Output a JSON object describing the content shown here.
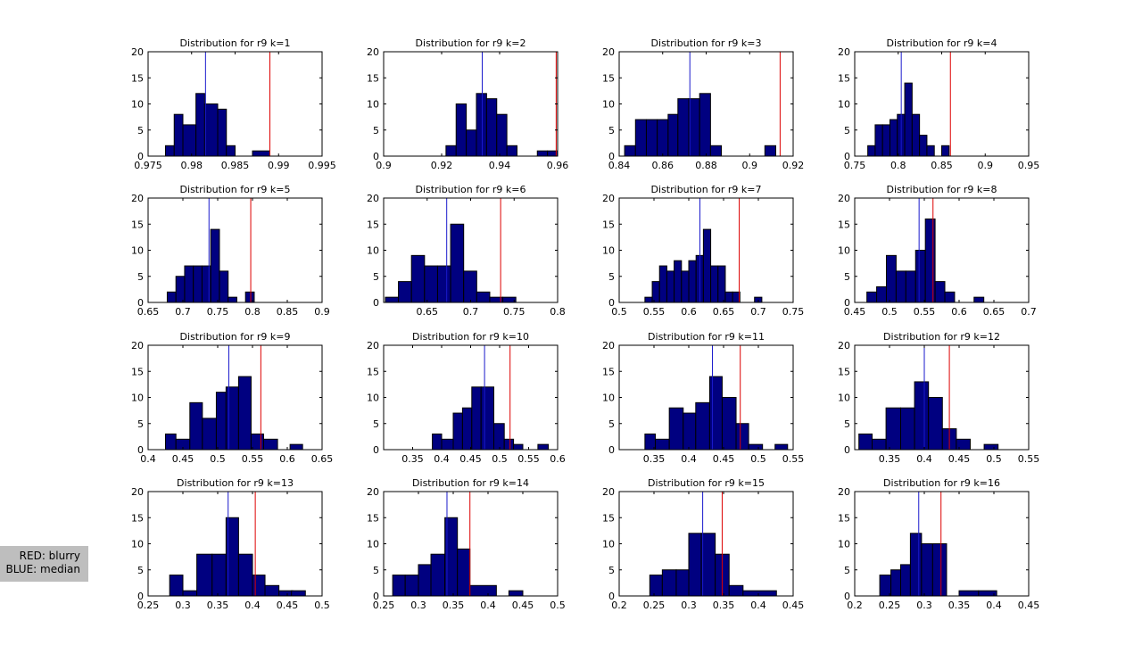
{
  "legend": {
    "red_label": "RED: blurry",
    "blue_label": "BLUE: median"
  },
  "colors": {
    "bar_fill": "#000080",
    "bar_edge": "#000000",
    "red_line": "#dd0000",
    "blue_line": "#1a1acc"
  },
  "chart_data": [
    {
      "type": "bar",
      "title": "Distribution for r9 k=1",
      "xlim": [
        0.975,
        0.995
      ],
      "ylim": [
        0,
        20
      ],
      "xticks": [
        0.975,
        0.98,
        0.985,
        0.99,
        0.995
      ],
      "xtick_labels": [
        "0.975",
        "0.98",
        "0.985",
        "0.99",
        "0.995"
      ],
      "yticks": [
        0,
        5,
        10,
        15,
        20
      ],
      "bins": [
        [
          0.977,
          0.978,
          2
        ],
        [
          0.978,
          0.979,
          8
        ],
        [
          0.979,
          0.9805,
          6
        ],
        [
          0.9805,
          0.9815,
          12
        ],
        [
          0.9815,
          0.983,
          10
        ],
        [
          0.983,
          0.984,
          9
        ],
        [
          0.984,
          0.985,
          2
        ],
        [
          0.987,
          0.989,
          1
        ]
      ],
      "median": 0.9816,
      "blurry": 0.989
    },
    {
      "type": "bar",
      "title": "Distribution for r9 k=2",
      "xlim": [
        0.9,
        0.96
      ],
      "ylim": [
        0,
        20
      ],
      "xticks": [
        0.9,
        0.92,
        0.94,
        0.96
      ],
      "xtick_labels": [
        "0.9",
        "0.92",
        "0.94",
        "0.96"
      ],
      "yticks": [
        0,
        5,
        10,
        15,
        20
      ],
      "bins": [
        [
          0.9215,
          0.925,
          2
        ],
        [
          0.925,
          0.9285,
          10
        ],
        [
          0.9285,
          0.932,
          5
        ],
        [
          0.932,
          0.9355,
          12
        ],
        [
          0.9355,
          0.939,
          11
        ],
        [
          0.939,
          0.9425,
          8
        ],
        [
          0.9425,
          0.946,
          2
        ],
        [
          0.9495,
          0.953,
          0
        ],
        [
          0.953,
          0.9565,
          1
        ],
        [
          0.9565,
          0.96,
          1
        ]
      ],
      "median": 0.934,
      "blurry": 0.9595
    },
    {
      "type": "bar",
      "title": "Distribution for r9 k=3",
      "xlim": [
        0.84,
        0.92
      ],
      "ylim": [
        0,
        20
      ],
      "xticks": [
        0.84,
        0.86,
        0.88,
        0.9,
        0.92
      ],
      "xtick_labels": [
        "0.84",
        "0.86",
        "0.88",
        "0.9",
        "0.92"
      ],
      "yticks": [
        0,
        5,
        10,
        15,
        20
      ],
      "bins": [
        [
          0.8425,
          0.8475,
          2
        ],
        [
          0.8475,
          0.8525,
          7
        ],
        [
          0.8525,
          0.8575,
          7
        ],
        [
          0.8575,
          0.8625,
          7
        ],
        [
          0.8625,
          0.867,
          8
        ],
        [
          0.867,
          0.872,
          11
        ],
        [
          0.872,
          0.877,
          11
        ],
        [
          0.877,
          0.882,
          12
        ],
        [
          0.882,
          0.887,
          2
        ],
        [
          0.907,
          0.912,
          2
        ]
      ],
      "median": 0.8725,
      "blurry": 0.914
    },
    {
      "type": "bar",
      "title": "Distribution for r9 k=4",
      "xlim": [
        0.75,
        0.95
      ],
      "ylim": [
        0,
        20
      ],
      "xticks": [
        0.75,
        0.8,
        0.85,
        0.9,
        0.95
      ],
      "xtick_labels": [
        "0.75",
        "0.8",
        "0.85",
        "0.9",
        "0.95"
      ],
      "yticks": [
        0,
        5,
        10,
        15,
        20
      ],
      "bins": [
        [
          0.765,
          0.7735,
          2
        ],
        [
          0.7735,
          0.782,
          6
        ],
        [
          0.782,
          0.7905,
          6
        ],
        [
          0.7905,
          0.799,
          7
        ],
        [
          0.799,
          0.8075,
          8
        ],
        [
          0.8075,
          0.816,
          14
        ],
        [
          0.816,
          0.8245,
          8
        ],
        [
          0.8245,
          0.833,
          4
        ],
        [
          0.833,
          0.8415,
          2
        ],
        [
          0.85,
          0.8585,
          2
        ]
      ],
      "median": 0.8035,
      "blurry": 0.86
    },
    {
      "type": "bar",
      "title": "Distribution for r9 k=5",
      "xlim": [
        0.65,
        0.9
      ],
      "ylim": [
        0,
        20
      ],
      "xticks": [
        0.65,
        0.7,
        0.75,
        0.8,
        0.85,
        0.9
      ],
      "xtick_labels": [
        "0.65",
        "0.7",
        "0.75",
        "0.8",
        "0.85",
        "0.9"
      ],
      "yticks": [
        0,
        5,
        10,
        15,
        20
      ],
      "bins": [
        [
          0.6775,
          0.69,
          2
        ],
        [
          0.69,
          0.7025,
          5
        ],
        [
          0.7025,
          0.715,
          7
        ],
        [
          0.715,
          0.7275,
          7
        ],
        [
          0.7275,
          0.74,
          7
        ],
        [
          0.74,
          0.7525,
          14
        ],
        [
          0.7525,
          0.765,
          6
        ],
        [
          0.765,
          0.7775,
          1
        ],
        [
          0.79,
          0.8025,
          2
        ]
      ],
      "median": 0.7375,
      "blurry": 0.7975
    },
    {
      "type": "bar",
      "title": "Distribution for r9 k=6",
      "xlim": [
        0.6,
        0.8
      ],
      "ylim": [
        0,
        20
      ],
      "xticks": [
        0.65,
        0.7,
        0.75,
        0.8
      ],
      "xtick_labels": [
        "0.65",
        "0.7",
        "0.75",
        "0.8"
      ],
      "yticks": [
        0,
        5,
        10,
        15,
        20
      ],
      "bins": [
        [
          0.602,
          0.617,
          1
        ],
        [
          0.617,
          0.632,
          4
        ],
        [
          0.632,
          0.647,
          9
        ],
        [
          0.647,
          0.662,
          7
        ],
        [
          0.662,
          0.677,
          7
        ],
        [
          0.677,
          0.692,
          15
        ],
        [
          0.692,
          0.707,
          6
        ],
        [
          0.707,
          0.722,
          2
        ],
        [
          0.722,
          0.737,
          1
        ],
        [
          0.737,
          0.752,
          1
        ]
      ],
      "median": 0.6725,
      "blurry": 0.7345
    },
    {
      "type": "bar",
      "title": "Distribution for r9 k=7",
      "xlim": [
        0.5,
        0.75
      ],
      "ylim": [
        0,
        20
      ],
      "xticks": [
        0.5,
        0.55,
        0.6,
        0.65,
        0.7,
        0.75
      ],
      "xtick_labels": [
        "0.5",
        "0.55",
        "0.6",
        "0.65",
        "0.7",
        "0.75"
      ],
      "yticks": [
        0,
        5,
        10,
        15,
        20
      ],
      "bins": [
        [
          0.537,
          0.5475,
          1
        ],
        [
          0.5475,
          0.558,
          4
        ],
        [
          0.558,
          0.5685,
          7
        ],
        [
          0.5685,
          0.579,
          6
        ],
        [
          0.579,
          0.5895,
          8
        ],
        [
          0.5895,
          0.6,
          6
        ],
        [
          0.6,
          0.6105,
          8
        ],
        [
          0.6105,
          0.621,
          9
        ],
        [
          0.621,
          0.6315,
          14
        ],
        [
          0.6315,
          0.642,
          7
        ],
        [
          0.642,
          0.6525,
          7
        ],
        [
          0.6525,
          0.663,
          2
        ],
        [
          0.663,
          0.6735,
          2
        ],
        [
          0.6945,
          0.705,
          1
        ]
      ],
      "median": 0.616,
      "blurry": 0.6725
    },
    {
      "type": "bar",
      "title": "Distribution for r9 k=8",
      "xlim": [
        0.45,
        0.7
      ],
      "ylim": [
        0,
        20
      ],
      "xticks": [
        0.45,
        0.5,
        0.55,
        0.6,
        0.65,
        0.7
      ],
      "xtick_labels": [
        "0.45",
        "0.5",
        "0.55",
        "0.6",
        "0.65",
        "0.7"
      ],
      "yticks": [
        0,
        5,
        10,
        15,
        20
      ],
      "bins": [
        [
          0.4675,
          0.4815,
          2
        ],
        [
          0.4815,
          0.4955,
          3
        ],
        [
          0.4955,
          0.5095,
          9
        ],
        [
          0.5095,
          0.5235,
          6
        ],
        [
          0.5235,
          0.5375,
          6
        ],
        [
          0.5375,
          0.5515,
          10
        ],
        [
          0.5515,
          0.5655,
          16
        ],
        [
          0.5655,
          0.5795,
          4
        ],
        [
          0.5795,
          0.5935,
          2
        ],
        [
          0.6215,
          0.6355,
          1
        ]
      ],
      "median": 0.5425,
      "blurry": 0.5625
    },
    {
      "type": "bar",
      "title": "Distribution for r9 k=9",
      "xlim": [
        0.4,
        0.65
      ],
      "ylim": [
        0,
        20
      ],
      "xticks": [
        0.4,
        0.45,
        0.5,
        0.55,
        0.6,
        0.65
      ],
      "xtick_labels": [
        "0.4",
        "0.45",
        "0.5",
        "0.55",
        "0.6",
        "0.65"
      ],
      "yticks": [
        0,
        5,
        10,
        15,
        20
      ],
      "bins": [
        [
          0.425,
          0.44,
          3
        ],
        [
          0.44,
          0.46,
          2
        ],
        [
          0.46,
          0.478,
          9
        ],
        [
          0.478,
          0.498,
          6
        ],
        [
          0.498,
          0.512,
          11
        ],
        [
          0.512,
          0.53,
          12
        ],
        [
          0.53,
          0.548,
          14
        ],
        [
          0.548,
          0.566,
          3
        ],
        [
          0.566,
          0.586,
          2
        ],
        [
          0.604,
          0.622,
          1
        ]
      ],
      "median": 0.516,
      "blurry": 0.562
    },
    {
      "type": "bar",
      "title": "Distribution for r9 k=10",
      "xlim": [
        0.3,
        0.6
      ],
      "ylim": [
        0,
        20
      ],
      "xticks": [
        0.35,
        0.4,
        0.45,
        0.5,
        0.55,
        0.6
      ],
      "xtick_labels": [
        "0.35",
        "0.4",
        "0.45",
        "0.5",
        "0.55",
        "0.6"
      ],
      "yticks": [
        0,
        5,
        10,
        15,
        20
      ],
      "bins": [
        [
          0.384,
          0.4,
          3
        ],
        [
          0.4,
          0.42,
          2
        ],
        [
          0.42,
          0.436,
          7
        ],
        [
          0.436,
          0.452,
          8
        ],
        [
          0.452,
          0.468,
          12
        ],
        [
          0.468,
          0.49,
          12
        ],
        [
          0.49,
          0.508,
          5
        ],
        [
          0.508,
          0.524,
          2
        ],
        [
          0.524,
          0.54,
          1
        ],
        [
          0.566,
          0.584,
          1
        ]
      ],
      "median": 0.474,
      "blurry": 0.518
    },
    {
      "type": "bar",
      "title": "Distribution for r9 k=11",
      "xlim": [
        0.3,
        0.55
      ],
      "ylim": [
        0,
        20
      ],
      "xticks": [
        0.35,
        0.4,
        0.45,
        0.5,
        0.55
      ],
      "xtick_labels": [
        "0.35",
        "0.4",
        "0.45",
        "0.5",
        "0.55"
      ],
      "yticks": [
        0,
        5,
        10,
        15,
        20
      ],
      "bins": [
        [
          0.337,
          0.352,
          3
        ],
        [
          0.352,
          0.372,
          2
        ],
        [
          0.372,
          0.392,
          8
        ],
        [
          0.392,
          0.41,
          7
        ],
        [
          0.41,
          0.43,
          9
        ],
        [
          0.43,
          0.448,
          14
        ],
        [
          0.448,
          0.468,
          10
        ],
        [
          0.468,
          0.486,
          5
        ],
        [
          0.486,
          0.506,
          1
        ],
        [
          0.524,
          0.542,
          1
        ]
      ],
      "median": 0.434,
      "blurry": 0.474
    },
    {
      "type": "bar",
      "title": "Distribution for r9 k=12",
      "xlim": [
        0.3,
        0.55
      ],
      "ylim": [
        0,
        20
      ],
      "xticks": [
        0.35,
        0.4,
        0.45,
        0.5,
        0.55
      ],
      "xtick_labels": [
        "0.35",
        "0.4",
        "0.45",
        "0.5",
        "0.55"
      ],
      "yticks": [
        0,
        5,
        10,
        15,
        20
      ],
      "bins": [
        [
          0.306,
          0.325,
          3
        ],
        [
          0.325,
          0.345,
          2
        ],
        [
          0.345,
          0.366,
          8
        ],
        [
          0.366,
          0.386,
          8
        ],
        [
          0.386,
          0.406,
          13
        ],
        [
          0.406,
          0.426,
          10
        ],
        [
          0.426,
          0.446,
          4
        ],
        [
          0.446,
          0.466,
          2
        ],
        [
          0.486,
          0.506,
          1
        ]
      ],
      "median": 0.4,
      "blurry": 0.436
    },
    {
      "type": "bar",
      "title": "Distribution for r9 k=13",
      "xlim": [
        0.25,
        0.5
      ],
      "ylim": [
        0,
        20
      ],
      "xticks": [
        0.25,
        0.3,
        0.35,
        0.4,
        0.45,
        0.5
      ],
      "xtick_labels": [
        "0.25",
        "0.3",
        "0.35",
        "0.4",
        "0.45",
        "0.5"
      ],
      "yticks": [
        0,
        5,
        10,
        15,
        20
      ],
      "bins": [
        [
          0.281,
          0.3,
          4
        ],
        [
          0.3,
          0.32,
          1
        ],
        [
          0.32,
          0.342,
          8
        ],
        [
          0.342,
          0.362,
          8
        ],
        [
          0.362,
          0.38,
          15
        ],
        [
          0.38,
          0.4,
          8
        ],
        [
          0.4,
          0.418,
          4
        ],
        [
          0.418,
          0.438,
          2
        ],
        [
          0.438,
          0.458,
          1
        ],
        [
          0.456,
          0.476,
          1
        ]
      ],
      "median": 0.365,
      "blurry": 0.404
    },
    {
      "type": "bar",
      "title": "Distribution for r9 k=14",
      "xlim": [
        0.25,
        0.5
      ],
      "ylim": [
        0,
        20
      ],
      "xticks": [
        0.25,
        0.3,
        0.35,
        0.4,
        0.45,
        0.5
      ],
      "xtick_labels": [
        "0.25",
        "0.3",
        "0.35",
        "0.4",
        "0.45",
        "0.5"
      ],
      "yticks": [
        0,
        5,
        10,
        15,
        20
      ],
      "bins": [
        [
          0.263,
          0.281,
          4
        ],
        [
          0.281,
          0.3,
          4
        ],
        [
          0.3,
          0.318,
          6
        ],
        [
          0.318,
          0.338,
          8
        ],
        [
          0.338,
          0.356,
          15
        ],
        [
          0.356,
          0.374,
          9
        ],
        [
          0.374,
          0.412,
          2
        ],
        [
          0.43,
          0.45,
          1
        ]
      ],
      "median": 0.341,
      "blurry": 0.374
    },
    {
      "type": "bar",
      "title": "Distribution for r9 k=15",
      "xlim": [
        0.2,
        0.45
      ],
      "ylim": [
        0,
        20
      ],
      "xticks": [
        0.2,
        0.25,
        0.3,
        0.35,
        0.4,
        0.45
      ],
      "xtick_labels": [
        "0.2",
        "0.25",
        "0.3",
        "0.35",
        "0.4",
        "0.45"
      ],
      "yticks": [
        0,
        5,
        10,
        15,
        20
      ],
      "bins": [
        [
          0.244,
          0.262,
          4
        ],
        [
          0.262,
          0.282,
          5
        ],
        [
          0.282,
          0.3,
          5
        ],
        [
          0.3,
          0.318,
          12
        ],
        [
          0.318,
          0.338,
          12
        ],
        [
          0.338,
          0.358,
          8
        ],
        [
          0.358,
          0.378,
          2
        ],
        [
          0.378,
          0.426,
          1
        ]
      ],
      "median": 0.32,
      "blurry": 0.348
    },
    {
      "type": "bar",
      "title": "Distribution for r9 k=16",
      "xlim": [
        0.2,
        0.45
      ],
      "ylim": [
        0,
        20
      ],
      "xticks": [
        0.2,
        0.25,
        0.3,
        0.35,
        0.4,
        0.45
      ],
      "xtick_labels": [
        "0.2",
        "0.25",
        "0.3",
        "0.35",
        "0.4",
        "0.45"
      ],
      "yticks": [
        0,
        5,
        10,
        15,
        20
      ],
      "bins": [
        [
          0.236,
          0.252,
          4
        ],
        [
          0.252,
          0.266,
          5
        ],
        [
          0.266,
          0.28,
          6
        ],
        [
          0.28,
          0.296,
          12
        ],
        [
          0.296,
          0.312,
          10
        ],
        [
          0.312,
          0.332,
          10
        ],
        [
          0.35,
          0.378,
          1
        ],
        [
          0.378,
          0.404,
          1
        ]
      ],
      "median": 0.292,
      "blurry": 0.324
    }
  ]
}
